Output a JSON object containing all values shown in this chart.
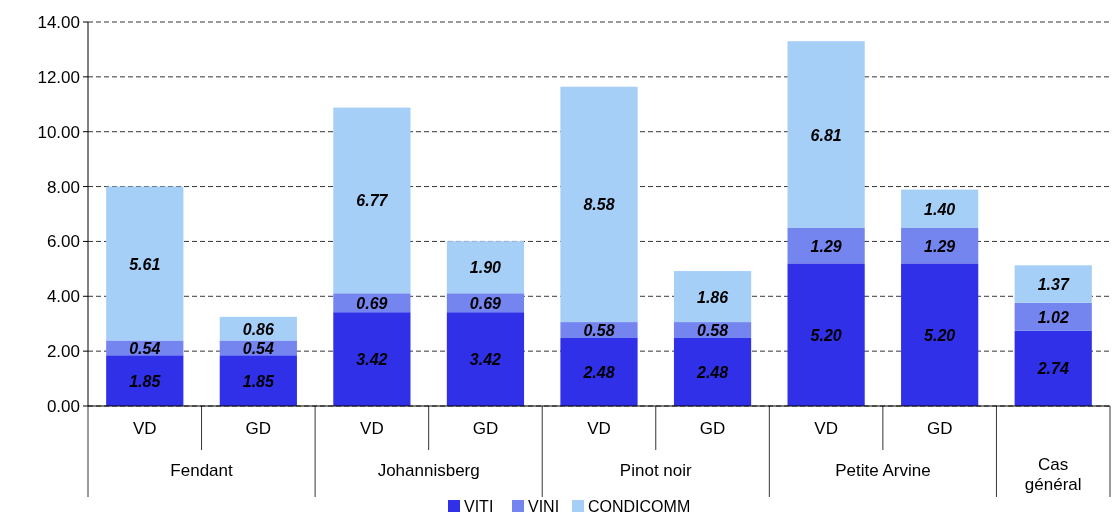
{
  "chart_data": {
    "type": "bar",
    "stacked": true,
    "categories": [
      "VD",
      "GD",
      "VD",
      "GD",
      "VD",
      "GD",
      "VD",
      "GD",
      null
    ],
    "series": [
      {
        "name": "VITI",
        "color": "#3030e8",
        "values": [
          1.85,
          1.85,
          3.42,
          3.42,
          2.48,
          2.48,
          5.2,
          5.2,
          2.74
        ],
        "value_labels": [
          "1.85",
          "1.85",
          "3.42",
          "3.42",
          "2.48",
          "2.48",
          "5.20",
          "5.20",
          "2.74"
        ]
      },
      {
        "name": "VINI",
        "color": "#7585f0",
        "values": [
          0.54,
          0.54,
          0.69,
          0.69,
          0.58,
          0.58,
          1.29,
          1.29,
          1.02
        ],
        "value_labels": [
          "0.54",
          "0.54",
          "0.69",
          "0.69",
          "0.58",
          "0.58",
          "1.29",
          "1.29",
          "1.02"
        ]
      },
      {
        "name": "CONDICOMM",
        "color": "#a6cff8",
        "values": [
          5.61,
          0.86,
          6.77,
          1.9,
          8.58,
          1.86,
          6.81,
          1.4,
          1.37
        ],
        "value_labels": [
          "5.61",
          "0.86",
          "6.77",
          "1.90",
          "8.58",
          "1.86",
          "6.81",
          "1.40",
          "1.37"
        ]
      }
    ],
    "ylim": [
      0,
      14
    ],
    "yticks": [
      {
        "value": 0,
        "label": "0.00"
      },
      {
        "value": 2,
        "label": "2.00"
      },
      {
        "value": 4,
        "label": "4.00"
      },
      {
        "value": 6,
        "label": "6.00"
      },
      {
        "value": 8,
        "label": "8.00"
      },
      {
        "value": 10,
        "label": "10.00"
      },
      {
        "value": 12,
        "label": "12.00"
      },
      {
        "value": 14,
        "label": "14.00"
      }
    ],
    "grid": "y",
    "legend": "bottom",
    "annotations": [
      "Fendant",
      "Johannisberg",
      "Pinot noir",
      "Petite Arvine",
      "Cas général"
    ]
  }
}
